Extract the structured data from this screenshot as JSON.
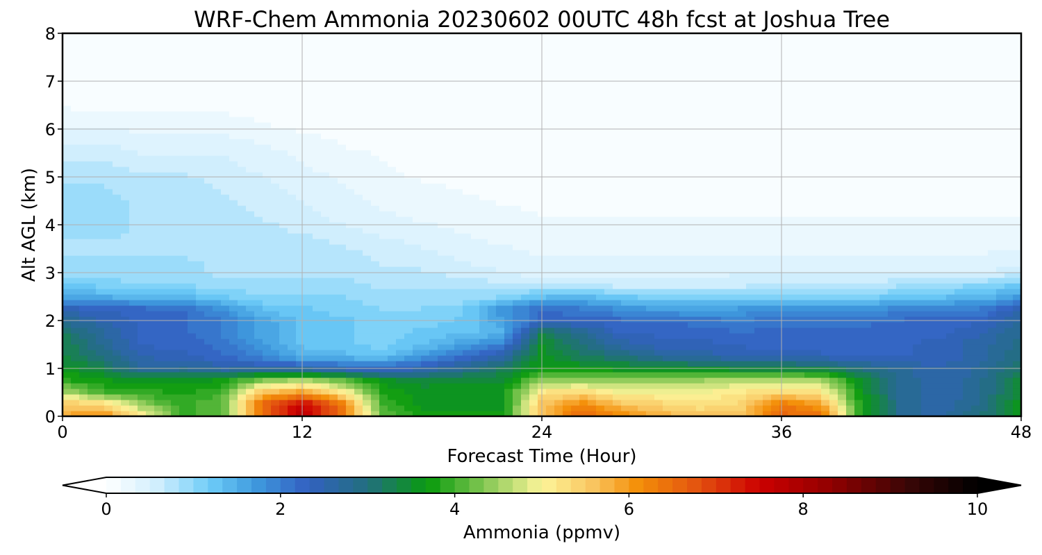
{
  "chart_data": {
    "type": "heatmap",
    "title": "WRF-Chem Ammonia  20230602 00UTC 48h fcst at Joshua Tree",
    "xlabel": "Forecast Time (Hour)",
    "ylabel": "Alt AGL (km)",
    "xlim": [
      0,
      48
    ],
    "ylim": [
      0,
      8
    ],
    "x_ticks": [
      0,
      12,
      24,
      36,
      48
    ],
    "y_ticks": [
      0,
      1,
      2,
      3,
      4,
      5,
      6,
      7,
      8
    ],
    "grid": true,
    "x": [
      0,
      2,
      4,
      6,
      8,
      10,
      12,
      14,
      16,
      18,
      20,
      22,
      24,
      26,
      28,
      30,
      32,
      34,
      36,
      38,
      40,
      42,
      44,
      46,
      48
    ],
    "y": [
      0,
      0.25,
      0.5,
      0.75,
      1,
      1.25,
      1.5,
      1.75,
      2,
      2.25,
      2.5,
      2.75,
      3,
      3.5,
      4,
      4.5,
      5,
      5.5,
      6,
      6.5,
      7,
      7.5,
      8
    ],
    "z": [
      [
        5.8,
        6.2,
        5.2,
        4.0,
        4.0,
        6.4,
        7.8,
        6.4,
        4.2,
        3.8,
        3.7,
        3.7,
        5.6,
        6.6,
        6.2,
        5.8,
        5.6,
        5.6,
        6.6,
        6.4,
        3.8,
        2.8,
        2.6,
        3.0,
        3.6
      ],
      [
        5.6,
        5.4,
        4.4,
        3.9,
        4.2,
        6.6,
        7.6,
        6.4,
        4.0,
        3.6,
        3.6,
        3.6,
        5.6,
        6.2,
        5.6,
        5.4,
        5.2,
        5.4,
        6.4,
        6.0,
        3.7,
        2.8,
        2.5,
        2.9,
        3.6
      ],
      [
        4.6,
        4.0,
        3.9,
        3.8,
        4.0,
        5.6,
        6.0,
        5.2,
        3.8,
        3.6,
        3.6,
        3.6,
        5.2,
        5.4,
        5.0,
        5.0,
        5.0,
        5.2,
        5.4,
        5.2,
        3.6,
        2.8,
        2.5,
        2.8,
        3.5
      ],
      [
        3.9,
        3.7,
        3.6,
        3.6,
        3.7,
        4.4,
        4.6,
        4.2,
        3.6,
        3.4,
        3.5,
        3.5,
        4.4,
        4.4,
        4.4,
        4.4,
        4.5,
        4.6,
        4.6,
        4.6,
        3.5,
        2.8,
        2.5,
        2.8,
        3.4
      ],
      [
        3.6,
        3.3,
        2.7,
        2.8,
        2.6,
        2.6,
        2.6,
        2.4,
        2.3,
        2.5,
        2.8,
        3.2,
        3.7,
        3.7,
        3.6,
        3.6,
        3.5,
        3.4,
        3.4,
        3.3,
        3.0,
        2.7,
        2.5,
        2.7,
        3.2
      ],
      [
        3.4,
        3.0,
        2.5,
        2.4,
        2.2,
        1.9,
        1.5,
        1.4,
        1.3,
        1.7,
        2.2,
        2.6,
        3.6,
        3.2,
        3.0,
        2.7,
        2.6,
        2.5,
        2.5,
        2.4,
        2.3,
        2.3,
        2.4,
        2.6,
        3.0
      ],
      [
        3.3,
        2.8,
        2.3,
        2.3,
        2.1,
        1.7,
        1.3,
        1.2,
        1.1,
        1.3,
        1.6,
        2.0,
        3.5,
        3.0,
        2.6,
        2.4,
        2.4,
        2.3,
        2.2,
        2.2,
        2.2,
        2.3,
        2.4,
        2.6,
        2.9
      ],
      [
        3.2,
        2.7,
        2.3,
        2.2,
        2.0,
        1.6,
        1.3,
        1.2,
        1.1,
        1.2,
        1.3,
        1.4,
        3.3,
        2.8,
        2.3,
        2.3,
        2.2,
        2.2,
        2.2,
        2.2,
        2.2,
        2.3,
        2.3,
        2.5,
        2.8
      ],
      [
        2.8,
        2.5,
        2.3,
        2.2,
        2.0,
        1.6,
        1.3,
        1.2,
        1.1,
        1.1,
        1.2,
        1.6,
        2.2,
        2.3,
        2.2,
        2.2,
        2.1,
        2.0,
        2.1,
        2.1,
        2.1,
        2.2,
        2.2,
        2.3,
        2.7
      ],
      [
        2.4,
        2.3,
        2.2,
        2.2,
        1.8,
        1.3,
        1.2,
        1.1,
        1.0,
        1.0,
        1.1,
        1.8,
        2.2,
        2.0,
        1.8,
        1.6,
        1.6,
        1.7,
        1.8,
        1.8,
        1.8,
        1.9,
        2.0,
        2.0,
        2.5
      ],
      [
        1.6,
        1.5,
        1.4,
        1.4,
        1.2,
        1.0,
        1.0,
        1.0,
        0.9,
        0.9,
        0.9,
        1.0,
        1.3,
        1.4,
        1.2,
        1.1,
        1.1,
        1.1,
        1.1,
        1.1,
        1.1,
        1.2,
        1.3,
        1.4,
        1.7
      ],
      [
        1.2,
        1.1,
        1.0,
        1.0,
        0.9,
        0.9,
        0.9,
        0.9,
        0.8,
        0.8,
        0.8,
        0.7,
        0.7,
        0.6,
        0.6,
        0.6,
        0.6,
        0.6,
        0.7,
        0.7,
        0.7,
        0.8,
        0.9,
        1.0,
        1.2
      ],
      [
        0.9,
        0.9,
        0.9,
        0.9,
        0.8,
        0.8,
        0.8,
        0.8,
        0.7,
        0.7,
        0.6,
        0.5,
        0.4,
        0.4,
        0.4,
        0.4,
        0.4,
        0.5,
        0.5,
        0.5,
        0.5,
        0.5,
        0.5,
        0.5,
        0.6
      ],
      [
        0.8,
        0.8,
        0.8,
        0.8,
        0.8,
        0.8,
        0.8,
        0.7,
        0.6,
        0.5,
        0.4,
        0.35,
        0.3,
        0.3,
        0.3,
        0.3,
        0.3,
        0.3,
        0.3,
        0.3,
        0.3,
        0.3,
        0.3,
        0.3,
        0.3
      ],
      [
        0.9,
        0.9,
        0.8,
        0.8,
        0.8,
        0.7,
        0.6,
        0.5,
        0.4,
        0.35,
        0.3,
        0.25,
        0.2,
        0.2,
        0.2,
        0.2,
        0.2,
        0.2,
        0.2,
        0.2,
        0.2,
        0.2,
        0.2,
        0.2,
        0.2
      ],
      [
        0.9,
        0.9,
        0.8,
        0.8,
        0.7,
        0.6,
        0.5,
        0.4,
        0.3,
        0.25,
        0.2,
        0.15,
        0.12,
        0.12,
        0.12,
        0.12,
        0.12,
        0.12,
        0.12,
        0.12,
        0.12,
        0.12,
        0.12,
        0.12,
        0.12
      ],
      [
        0.8,
        0.8,
        0.7,
        0.7,
        0.6,
        0.5,
        0.4,
        0.3,
        0.2,
        0.15,
        0.12,
        0.1,
        0.1,
        0.1,
        0.1,
        0.1,
        0.1,
        0.1,
        0.1,
        0.1,
        0.1,
        0.1,
        0.1,
        0.1,
        0.1
      ],
      [
        0.6,
        0.6,
        0.5,
        0.5,
        0.5,
        0.4,
        0.3,
        0.2,
        0.15,
        0.1,
        0.08,
        0.06,
        0.06,
        0.06,
        0.06,
        0.06,
        0.06,
        0.06,
        0.06,
        0.06,
        0.06,
        0.06,
        0.06,
        0.06,
        0.06
      ],
      [
        0.35,
        0.35,
        0.3,
        0.3,
        0.3,
        0.2,
        0.15,
        0.1,
        0.06,
        0.05,
        0.05,
        0.05,
        0.05,
        0.05,
        0.05,
        0.05,
        0.05,
        0.05,
        0.05,
        0.05,
        0.05,
        0.05,
        0.05,
        0.05,
        0.05
      ],
      [
        0.15,
        0.1,
        0.1,
        0.1,
        0.1,
        0.08,
        0.06,
        0.05,
        0.05,
        0.05,
        0.05,
        0.05,
        0.05,
        0.05,
        0.05,
        0.05,
        0.05,
        0.05,
        0.05,
        0.05,
        0.05,
        0.05,
        0.05,
        0.05,
        0.05
      ],
      [
        0.05,
        0.05,
        0.05,
        0.05,
        0.05,
        0.05,
        0.05,
        0.05,
        0.05,
        0.05,
        0.05,
        0.05,
        0.05,
        0.05,
        0.05,
        0.1,
        0.08,
        0.05,
        0.05,
        0.05,
        0.05,
        0.05,
        0.05,
        0.05,
        0.05
      ],
      [
        0.05,
        0.05,
        0.05,
        0.05,
        0.05,
        0.05,
        0.05,
        0.05,
        0.05,
        0.05,
        0.05,
        0.05,
        0.05,
        0.05,
        0.05,
        0.08,
        0.05,
        0.05,
        0.05,
        0.05,
        0.05,
        0.05,
        0.05,
        0.05,
        0.05
      ],
      [
        0.05,
        0.05,
        0.05,
        0.05,
        0.05,
        0.05,
        0.05,
        0.05,
        0.05,
        0.05,
        0.05,
        0.05,
        0.05,
        0.05,
        0.05,
        0.05,
        0.05,
        0.05,
        0.05,
        0.05,
        0.05,
        0.05,
        0.05,
        0.05,
        0.05
      ]
    ],
    "colorbar": {
      "label": "Ammonia  (ppmv)",
      "vmin": 0,
      "vmax": 10,
      "ticks": [
        0,
        2,
        4,
        6,
        8,
        10
      ],
      "extend": "both",
      "levels": 60,
      "orientation": "horizontal",
      "position": "bottom",
      "colormap": [
        [
          0,
          "#ffffff"
        ],
        [
          0.6,
          "#cfeefd"
        ],
        [
          1.2,
          "#6ccbf7"
        ],
        [
          1.7,
          "#3f9bde"
        ],
        [
          2.3,
          "#3361c2"
        ],
        [
          3.0,
          "#226f7e"
        ],
        [
          3.7,
          "#099b0d"
        ],
        [
          4.4,
          "#8fcb5a"
        ],
        [
          5.0,
          "#fdf59a"
        ],
        [
          5.6,
          "#f9c45e"
        ],
        [
          6.1,
          "#f48f08"
        ],
        [
          6.8,
          "#e35210"
        ],
        [
          7.5,
          "#cc0000"
        ],
        [
          8.3,
          "#920000"
        ],
        [
          9.2,
          "#3a0606"
        ],
        [
          10,
          "#000000"
        ]
      ]
    }
  }
}
